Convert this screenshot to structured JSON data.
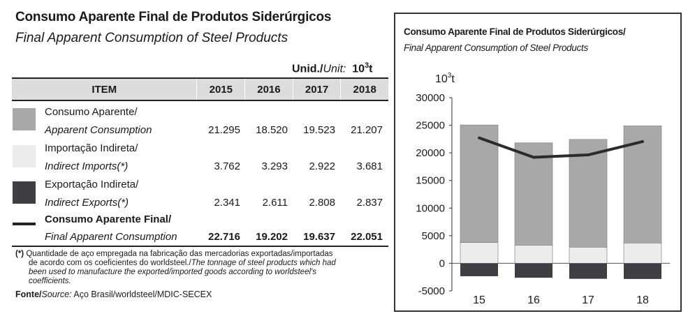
{
  "table": {
    "title_pt": "Consumo Aparente Final de Produtos Siderúrgicos",
    "title_en": "Final Apparent Consumption of Steel Products",
    "unit_pt": "Unid./",
    "unit_en": "Unit:",
    "unit_value": "10",
    "unit_exp": "3",
    "unit_suffix": "t",
    "header": {
      "item": "ITEM",
      "years": [
        "2015",
        "2016",
        "2017",
        "2018"
      ]
    },
    "rows": [
      {
        "label_pt": "Consumo Aparente/",
        "label_en": "Apparent Consumption",
        "values": [
          "21.295",
          "18.520",
          "19.523",
          "21.207"
        ],
        "color": "#a8a8a8"
      },
      {
        "label_pt": "Importação Indireta/",
        "label_en": "Indirect Imports(*)",
        "values": [
          "3.762",
          "3.293",
          "2.922",
          "3.681"
        ],
        "color": "#ececec"
      },
      {
        "label_pt": "Exportação Indireta/",
        "label_en": "Indirect Exports(*)",
        "values": [
          "2.341",
          "2.611",
          "2.808",
          "2.837"
        ],
        "color": "#3d3f44"
      },
      {
        "label_pt": "Consumo Aparente Final/",
        "label_en": "Final Apparent Consumption",
        "values": [
          "22.716",
          "19.202",
          "19.637",
          "22.051"
        ],
        "color": "#2b2b2b"
      }
    ],
    "footnote_mark": "(*)",
    "footnote_line1_pt": " Quantidade de aço empregada na fabricação das mercadorias exportadas/importadas",
    "footnote_line2_pt": "de acordo com os coeficientes do worldsteel./",
    "footnote_line2_en": "The tonnage of steel products which had",
    "footnote_line3_en": "been used to manufacture the exported/imported goods according to worldsteel's",
    "footnote_line4_en": "coefficients.",
    "source_label": "Fonte/",
    "source_label_en": "Source:",
    "source_value": " Aço Brasil/worldsteel/MDIC-SECEX"
  },
  "chart_data": {
    "type": "bar",
    "title": "Consumo Aparente Final de Produtos Siderúrgicos/",
    "subtitle": "Final Apparent Consumption of Steel Products",
    "ylabel": "10",
    "ylabel_exp": "3",
    "ylabel_suffix": "t",
    "categories": [
      "15",
      "16",
      "17",
      "18"
    ],
    "ylim": [
      -5000,
      30000
    ],
    "yticks": [
      -5000,
      0,
      5000,
      10000,
      15000,
      20000,
      25000,
      30000
    ],
    "ytick_labels": [
      "-5000",
      "0",
      "5000",
      "10000",
      "15000",
      "20000",
      "25000",
      "30000"
    ],
    "series": [
      {
        "name": "Consumo Aparente / Apparent Consumption",
        "kind": "stacked-bar",
        "values": [
          21295,
          18520,
          19523,
          21207
        ],
        "color": "#a8a8a8"
      },
      {
        "name": "Importação Indireta / Indirect Imports",
        "kind": "stacked-bar",
        "values": [
          3762,
          3293,
          2922,
          3681
        ],
        "color": "#ececec"
      },
      {
        "name": "Exportação Indireta / Indirect Exports",
        "kind": "negative-bar",
        "values": [
          -2341,
          -2611,
          -2808,
          -2837
        ],
        "color": "#3d3f44"
      },
      {
        "name": "Consumo Aparente Final / Final Apparent Consumption",
        "kind": "line",
        "values": [
          22716,
          19202,
          19637,
          22051
        ],
        "color": "#2b2b2b"
      }
    ]
  }
}
